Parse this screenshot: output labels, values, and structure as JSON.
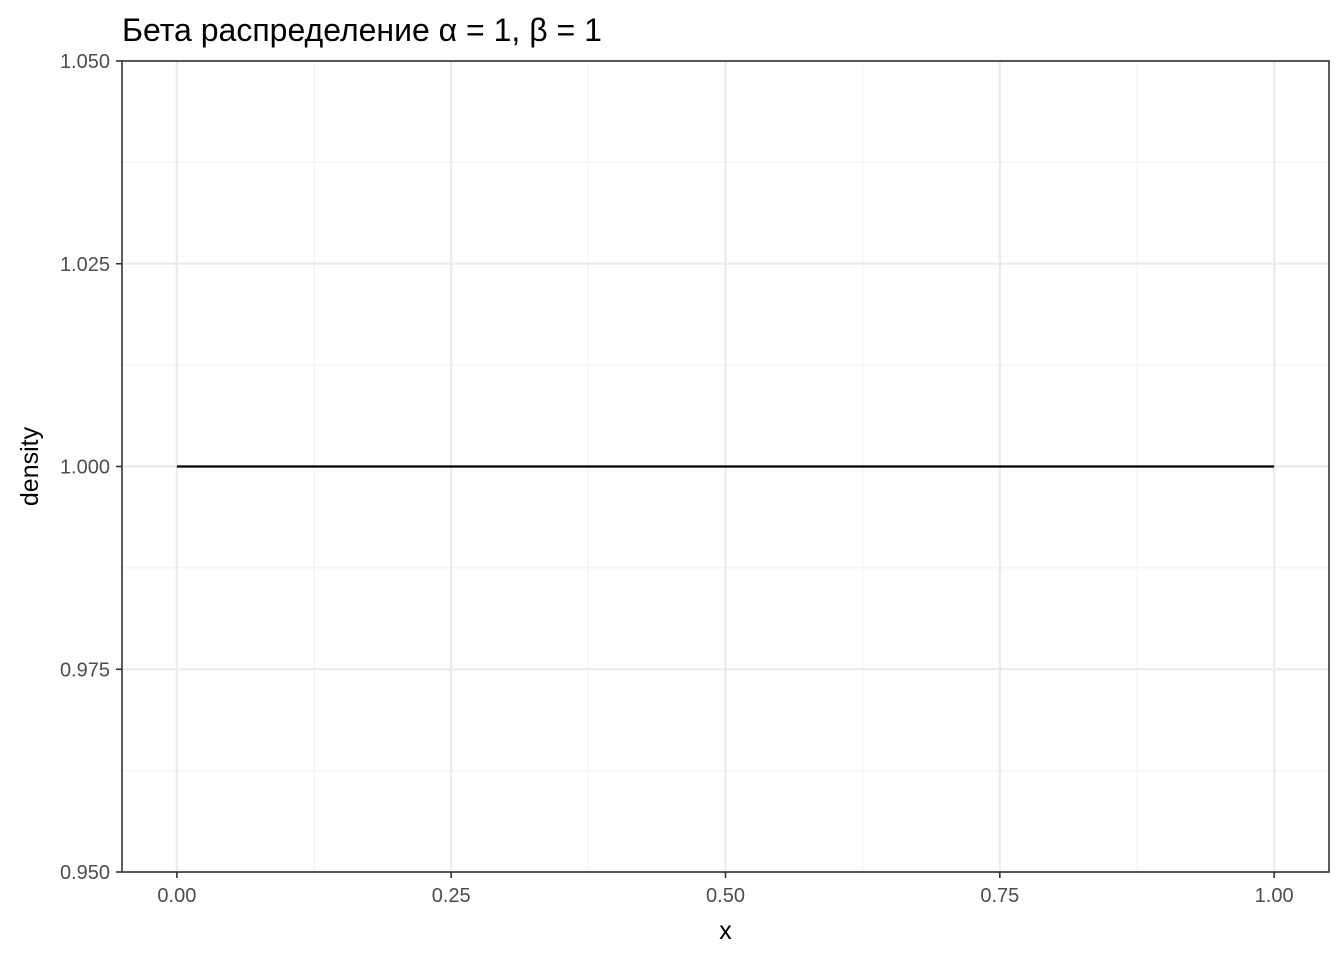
{
  "chart_data": {
    "type": "line",
    "title": "Бета распределение α = 1, β = 1",
    "xlabel": "x",
    "ylabel": "density",
    "xlim": [
      -0.05,
      1.05
    ],
    "ylim": [
      0.95,
      1.05
    ],
    "x_ticks": [
      0.0,
      0.25,
      0.5,
      0.75,
      1.0
    ],
    "x_tick_labels": [
      "0.00",
      "0.25",
      "0.50",
      "0.75",
      "1.00"
    ],
    "x_minor_ticks": [
      0.125,
      0.375,
      0.625,
      0.875
    ],
    "y_ticks": [
      0.95,
      0.975,
      1.0,
      1.025,
      1.05
    ],
    "y_tick_labels": [
      "0.950",
      "0.975",
      "1.000",
      "1.025",
      "1.050"
    ],
    "y_minor_ticks": [
      0.9625,
      0.9875,
      1.0125,
      1.0375
    ],
    "grid": true,
    "colors": {
      "line": "#000000",
      "grid_major": "#ebebeb",
      "grid_minor": "#f3f3f3",
      "border": "#333333"
    },
    "series": [
      {
        "x": [
          0.0,
          0.25,
          0.5,
          0.75,
          1.0
        ],
        "y": [
          1.0,
          1.0,
          1.0,
          1.0,
          1.0
        ]
      }
    ]
  }
}
